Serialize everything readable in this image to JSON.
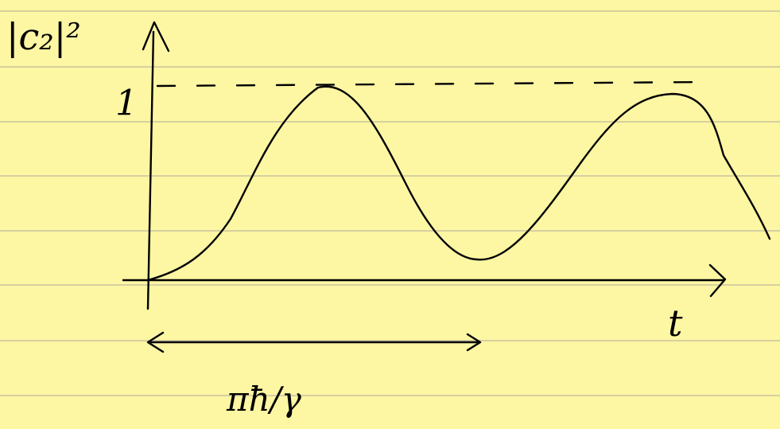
{
  "axes": {
    "y_label": "|c₂|²",
    "y_marker": "1",
    "x_label": "t"
  },
  "annotation": {
    "period": "πħ/γ"
  }
}
